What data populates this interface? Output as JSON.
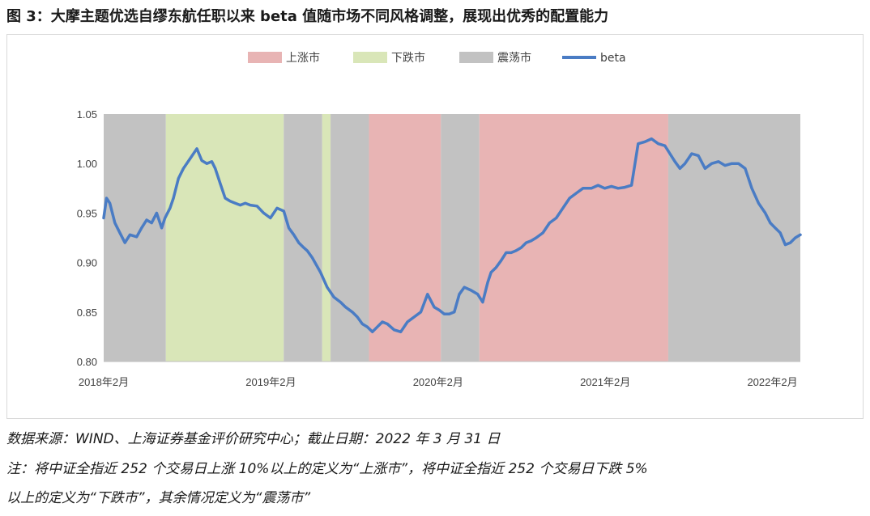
{
  "figure": {
    "title": "图 3：大摩主题优选自缪东航任职以来 beta 值随市场不同风格调整，展现出优秀的配置能力"
  },
  "notes": {
    "source": "数据来源：WIND、上海证券基金评价研究中心；截止日期：2022 年 3 月 31 日",
    "note_line1": "注：将中证全指近 252 个交易日上涨 10%以上的定义为“上涨市”，将中证全指近 252 个交易日下跌 5%",
    "note_line2": "以上的定义为“下跌市”，其余情况定义为“震荡市”"
  },
  "chart_data": {
    "type": "line",
    "title": "",
    "xlabel": "",
    "ylabel": "",
    "ylim": [
      0.8,
      1.05
    ],
    "yticks": [
      "1.05",
      "1.00",
      "0.95",
      "0.90",
      "0.85",
      "0.80"
    ],
    "xticks": [
      {
        "label": "2018年2月",
        "t": 2018.083
      },
      {
        "label": "2019年2月",
        "t": 2019.083
      },
      {
        "label": "2020年2月",
        "t": 2020.083
      },
      {
        "label": "2021年2月",
        "t": 2021.083
      },
      {
        "label": "2022年2月",
        "t": 2022.083
      }
    ],
    "xlim": [
      2018.083,
      2022.25
    ],
    "grid": false,
    "legend": {
      "placement": "top-center",
      "items": [
        {
          "label": "上涨市",
          "color": "#e8b4b4",
          "kind": "box"
        },
        {
          "label": "下跌市",
          "color": "#d9e6b8",
          "kind": "box"
        },
        {
          "label": "震荡市",
          "color": "#c2c2c2",
          "kind": "box"
        },
        {
          "label": "beta",
          "color": "#4a7cc4",
          "kind": "line"
        }
      ]
    },
    "regimes": [
      {
        "start": 2018.083,
        "end": 2018.455,
        "type": "震荡市"
      },
      {
        "start": 2018.455,
        "end": 2019.16,
        "type": "下跌市"
      },
      {
        "start": 2019.16,
        "end": 2019.39,
        "type": "震荡市"
      },
      {
        "start": 2019.39,
        "end": 2019.44,
        "type": "下跌市"
      },
      {
        "start": 2019.44,
        "end": 2019.67,
        "type": "震荡市"
      },
      {
        "start": 2019.67,
        "end": 2020.1,
        "type": "上涨市"
      },
      {
        "start": 2020.1,
        "end": 2020.33,
        "type": "震荡市"
      },
      {
        "start": 2020.33,
        "end": 2021.46,
        "type": "上涨市"
      },
      {
        "start": 2021.46,
        "end": 2022.25,
        "type": "震荡市"
      }
    ],
    "series": [
      {
        "name": "beta",
        "color": "#4a7cc4",
        "x": [
          2018.083,
          2018.1,
          2018.12,
          2018.15,
          2018.18,
          2018.21,
          2018.24,
          2018.28,
          2018.31,
          2018.34,
          2018.37,
          2018.4,
          2018.43,
          2018.45,
          2018.48,
          2018.5,
          2018.53,
          2018.56,
          2018.6,
          2018.64,
          2018.67,
          2018.7,
          2018.73,
          2018.75,
          2018.78,
          2018.81,
          2018.84,
          2018.87,
          2018.9,
          2018.93,
          2018.96,
          2019.0,
          2019.04,
          2019.08,
          2019.12,
          2019.16,
          2019.19,
          2019.22,
          2019.25,
          2019.28,
          2019.3,
          2019.33,
          2019.38,
          2019.42,
          2019.46,
          2019.5,
          2019.53,
          2019.57,
          2019.6,
          2019.63,
          2019.66,
          2019.69,
          2019.72,
          2019.75,
          2019.78,
          2019.82,
          2019.86,
          2019.9,
          2019.94,
          2019.98,
          2020.02,
          2020.06,
          2020.09,
          2020.12,
          2020.15,
          2020.18,
          2020.21,
          2020.24,
          2020.28,
          2020.32,
          2020.35,
          2020.38,
          2020.4,
          2020.43,
          2020.46,
          2020.49,
          2020.52,
          2020.55,
          2020.58,
          2020.61,
          2020.64,
          2020.67,
          2020.71,
          2020.75,
          2020.79,
          2020.83,
          2020.87,
          2020.91,
          2020.95,
          2021.0,
          2021.04,
          2021.08,
          2021.12,
          2021.16,
          2021.2,
          2021.24,
          2021.28,
          2021.32,
          2021.36,
          2021.4,
          2021.44,
          2021.47,
          2021.5,
          2021.53,
          2021.56,
          2021.6,
          2021.64,
          2021.68,
          2021.72,
          2021.76,
          2021.8,
          2021.84,
          2021.88,
          2021.92,
          2021.96,
          2022.0,
          2022.04,
          2022.07,
          2022.1,
          2022.13,
          2022.16,
          2022.19,
          2022.22,
          2022.25
        ],
        "values": [
          0.945,
          0.965,
          0.96,
          0.94,
          0.93,
          0.92,
          0.928,
          0.926,
          0.935,
          0.943,
          0.94,
          0.95,
          0.935,
          0.945,
          0.955,
          0.965,
          0.985,
          0.995,
          1.005,
          1.015,
          1.003,
          1.0,
          1.002,
          0.995,
          0.98,
          0.965,
          0.962,
          0.96,
          0.958,
          0.96,
          0.958,
          0.957,
          0.95,
          0.945,
          0.955,
          0.952,
          0.935,
          0.928,
          0.92,
          0.915,
          0.912,
          0.905,
          0.89,
          0.875,
          0.865,
          0.86,
          0.855,
          0.85,
          0.845,
          0.838,
          0.835,
          0.83,
          0.835,
          0.84,
          0.838,
          0.832,
          0.83,
          0.84,
          0.845,
          0.85,
          0.868,
          0.855,
          0.852,
          0.848,
          0.848,
          0.85,
          0.868,
          0.875,
          0.872,
          0.868,
          0.86,
          0.88,
          0.89,
          0.895,
          0.902,
          0.91,
          0.91,
          0.912,
          0.915,
          0.92,
          0.922,
          0.925,
          0.93,
          0.94,
          0.945,
          0.955,
          0.965,
          0.97,
          0.975,
          0.975,
          0.978,
          0.975,
          0.977,
          0.975,
          0.976,
          0.978,
          1.02,
          1.022,
          1.025,
          1.02,
          1.018,
          1.01,
          1.002,
          0.995,
          1.0,
          1.01,
          1.008,
          0.995,
          1.0,
          1.002,
          0.998,
          1.0,
          1.0,
          0.995,
          0.975,
          0.96,
          0.95,
          0.94,
          0.935,
          0.93,
          0.918,
          0.92,
          0.925,
          0.928
        ]
      }
    ]
  }
}
